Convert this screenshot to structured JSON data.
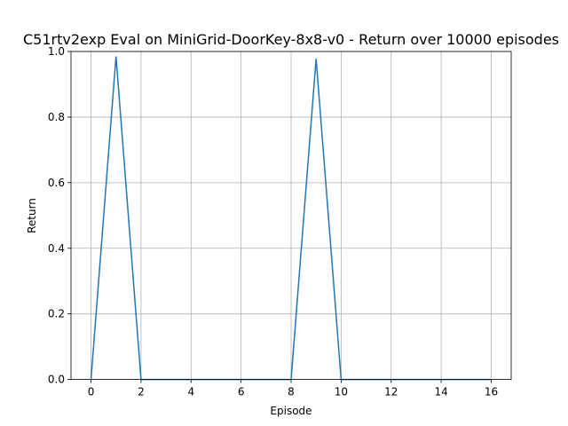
{
  "chart_data": {
    "type": "line",
    "title": "C51rtv2exp Eval on MiniGrid-DoorKey-8x8-v0 - Return over 10000 episodes",
    "xlabel": "Episode",
    "ylabel": "Return",
    "xlim": [
      -0.8,
      16.8
    ],
    "ylim": [
      0,
      1.0
    ],
    "xticks": [
      0,
      2,
      4,
      6,
      8,
      10,
      12,
      14,
      16
    ],
    "yticks": [
      0.0,
      0.2,
      0.4,
      0.6,
      0.8,
      1.0
    ],
    "xtick_labels": [
      "0",
      "2",
      "4",
      "6",
      "8",
      "10",
      "12",
      "14",
      "16"
    ],
    "ytick_labels": [
      "0.0",
      "0.2",
      "0.4",
      "0.6",
      "0.8",
      "1.0"
    ],
    "grid": true,
    "series": [
      {
        "color": "#1f77b4",
        "x": [
          0,
          1,
          2,
          3,
          4,
          5,
          6,
          7,
          8,
          9,
          10,
          11,
          12,
          13,
          14,
          15,
          16
        ],
        "values": [
          0,
          0.985,
          0,
          0,
          0,
          0,
          0,
          0,
          0,
          0.978,
          0,
          0,
          0,
          0,
          0,
          0,
          0
        ]
      }
    ]
  }
}
